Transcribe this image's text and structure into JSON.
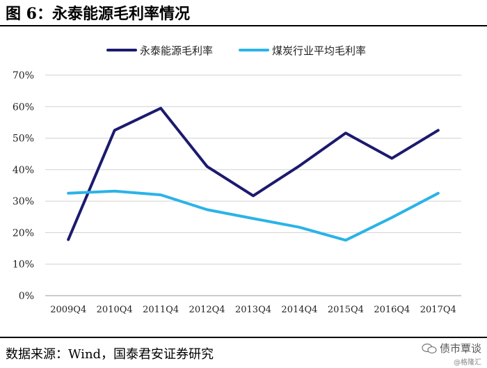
{
  "figure_title": "图 6：永泰能源毛利率情况",
  "source_note": "数据来源：Wind，国泰君安证券研究",
  "watermark": {
    "text": "债市覃谈",
    "sub": "@格隆汇",
    "icon": "wechat-icon"
  },
  "chart_data": {
    "type": "line",
    "categories": [
      "2009Q4",
      "2010Q4",
      "2011Q4",
      "2012Q4",
      "2013Q4",
      "2014Q4",
      "2015Q4",
      "2016Q4",
      "2017Q4"
    ],
    "series": [
      {
        "name": "永泰能源毛利率",
        "color": "#1c1a6e",
        "values": [
          17.8,
          52.5,
          59.5,
          41.0,
          31.7,
          41.2,
          51.6,
          43.6,
          52.5
        ]
      },
      {
        "name": "煤炭行业平均毛利率",
        "color": "#2bb3e8",
        "values": [
          32.5,
          33.2,
          32.0,
          27.3,
          24.5,
          21.7,
          17.6,
          24.8,
          32.5
        ]
      }
    ],
    "yticks": [
      "0%",
      "10%",
      "20%",
      "30%",
      "40%",
      "50%",
      "60%",
      "70%"
    ],
    "ylim": [
      0,
      70
    ],
    "grid": true,
    "legend_position": "top"
  }
}
